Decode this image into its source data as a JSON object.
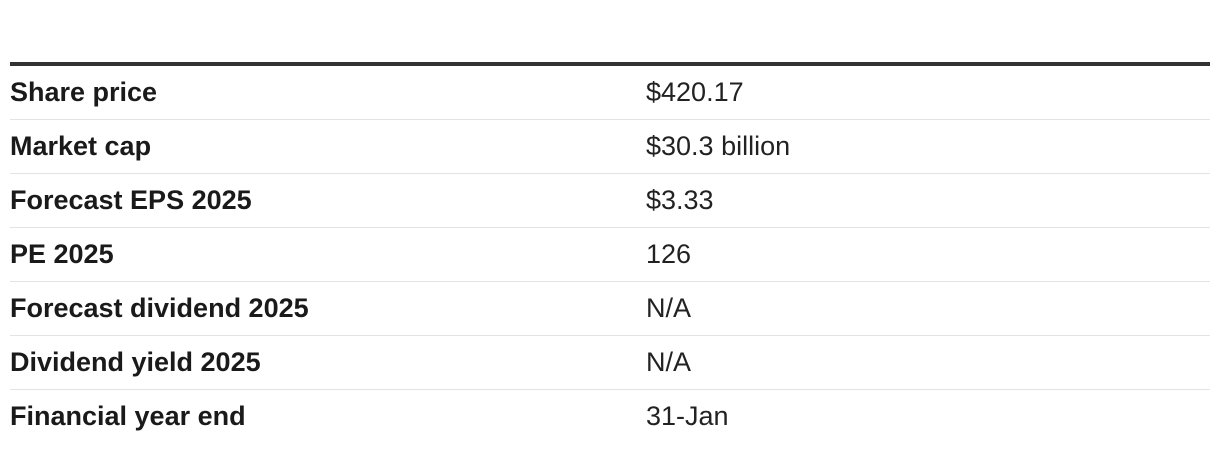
{
  "table": {
    "rows": [
      {
        "label": "Share price",
        "value": "$420.17"
      },
      {
        "label": "Market cap",
        "value": "$30.3 billion"
      },
      {
        "label": "Forecast EPS 2025",
        "value": "$3.33"
      },
      {
        "label": "PE 2025",
        "value": "126"
      },
      {
        "label": "Forecast dividend 2025",
        "value": "N/A"
      },
      {
        "label": "Dividend yield 2025",
        "value": "N/A"
      },
      {
        "label": "Financial year end",
        "value": "31-Jan"
      }
    ]
  }
}
